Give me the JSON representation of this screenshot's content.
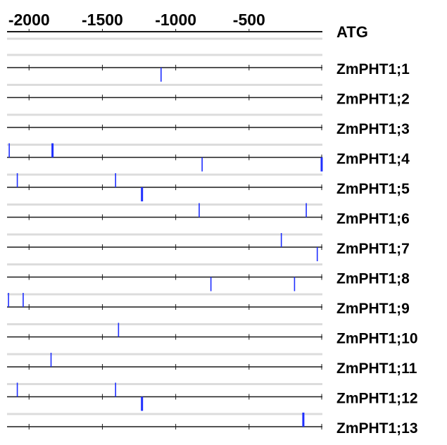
{
  "axis": {
    "tick_labels": [
      "-2000",
      "-1500",
      "-1000",
      "-500"
    ],
    "tick_values": [
      -2000,
      -1500,
      -1000,
      -500
    ],
    "minor_ticks": [
      -2000,
      -1500,
      -1000,
      -500
    ],
    "domain": [
      -2150,
      0
    ],
    "header_label": "ATG"
  },
  "colors": {
    "line": "#1a1a1a",
    "separator": "#dcdcdc",
    "element": "#1f2fff"
  },
  "genes": [
    {
      "name": "ZmPHT1;1",
      "elements": [
        {
          "pos": -1100,
          "strand": "-",
          "weight": 1
        }
      ]
    },
    {
      "name": "ZmPHT1;2",
      "elements": []
    },
    {
      "name": "ZmPHT1;3",
      "elements": []
    },
    {
      "name": "ZmPHT1;4",
      "elements": [
        {
          "pos": -2135,
          "strand": "+",
          "weight": 1
        },
        {
          "pos": -1840,
          "strand": "+",
          "weight": 2
        },
        {
          "pos": -820,
          "strand": "-",
          "weight": 1
        },
        {
          "pos": -5,
          "strand": "-",
          "weight": 2
        }
      ]
    },
    {
      "name": "ZmPHT1;5",
      "elements": [
        {
          "pos": -2080,
          "strand": "+",
          "weight": 1
        },
        {
          "pos": -1410,
          "strand": "+",
          "weight": 1
        },
        {
          "pos": -1230,
          "strand": "-",
          "weight": 2
        }
      ]
    },
    {
      "name": "ZmPHT1;6",
      "elements": [
        {
          "pos": -840,
          "strand": "+",
          "weight": 1
        },
        {
          "pos": -110,
          "strand": "+",
          "weight": 1
        }
      ]
    },
    {
      "name": "ZmPHT1;7",
      "elements": [
        {
          "pos": -280,
          "strand": "+",
          "weight": 1
        },
        {
          "pos": -35,
          "strand": "-",
          "weight": 1
        }
      ]
    },
    {
      "name": "ZmPHT1;8",
      "elements": [
        {
          "pos": -760,
          "strand": "-",
          "weight": 1
        },
        {
          "pos": -190,
          "strand": "-",
          "weight": 1
        }
      ]
    },
    {
      "name": "ZmPHT1;9",
      "elements": [
        {
          "pos": -2140,
          "strand": "+",
          "weight": 1
        },
        {
          "pos": -2040,
          "strand": "+",
          "weight": 1
        }
      ]
    },
    {
      "name": "ZmPHT1;10",
      "elements": [
        {
          "pos": -1390,
          "strand": "+",
          "weight": 1
        }
      ]
    },
    {
      "name": "ZmPHT1;11",
      "elements": [
        {
          "pos": -1850,
          "strand": "+",
          "weight": 1
        }
      ]
    },
    {
      "name": "ZmPHT1;12",
      "elements": [
        {
          "pos": -2080,
          "strand": "+",
          "weight": 1
        },
        {
          "pos": -1410,
          "strand": "+",
          "weight": 1
        },
        {
          "pos": -1230,
          "strand": "-",
          "weight": 2
        }
      ]
    },
    {
      "name": "ZmPHT1;13",
      "elements": [
        {
          "pos": -130,
          "strand": "+",
          "weight": 2
        }
      ]
    }
  ]
}
